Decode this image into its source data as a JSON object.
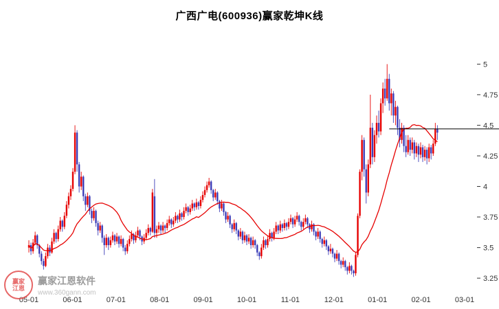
{
  "title": "广西广电(600936)赢家乾坤K线",
  "watermark": {
    "brand": "赢家江恩软件",
    "url": "www.360gann.com",
    "logo_line1": "赢家",
    "logo_line2": "江恩"
  },
  "chart_data": {
    "type": "candlestick",
    "title": "广西广电(600936)赢家乾坤K线",
    "x_labels": [
      "05-01",
      "06-01",
      "07-01",
      "08-01",
      "09-01",
      "10-01",
      "11-01",
      "12-01",
      "01-01",
      "02-01",
      "03-01"
    ],
    "y_tick_values": [
      5,
      4.75,
      4.5,
      4.25,
      4,
      3.75,
      3.5,
      3.25
    ],
    "y_tick_labels": [
      "5",
      "4.75",
      "4.5",
      "4.25",
      "4",
      "3.75",
      "3.5",
      "3.25"
    ],
    "ylim": [
      3.2,
      5.12
    ],
    "grid": false,
    "legend": "none",
    "ma_period": 22,
    "reference_line": {
      "price": 4.47,
      "start_day": 172,
      "color": "#000000"
    },
    "colors": {
      "up": "#e60000",
      "down": "#3d3db8",
      "ma": "#e60000",
      "axis_text": "#333333"
    },
    "candles": [
      [
        3.5,
        3.56,
        3.46,
        3.52
      ],
      [
        3.52,
        3.54,
        3.44,
        3.47
      ],
      [
        3.47,
        3.57,
        3.45,
        3.54
      ],
      [
        3.54,
        3.63,
        3.52,
        3.6
      ],
      [
        3.6,
        3.61,
        3.49,
        3.52
      ],
      [
        3.52,
        3.53,
        3.42,
        3.45
      ],
      [
        3.45,
        3.47,
        3.36,
        3.39
      ],
      [
        3.39,
        3.41,
        3.32,
        3.35
      ],
      [
        3.35,
        3.46,
        3.34,
        3.43
      ],
      [
        3.43,
        3.53,
        3.41,
        3.5
      ],
      [
        3.5,
        3.52,
        3.43,
        3.46
      ],
      [
        3.46,
        3.58,
        3.45,
        3.55
      ],
      [
        3.55,
        3.65,
        3.53,
        3.62
      ],
      [
        3.62,
        3.63,
        3.54,
        3.57
      ],
      [
        3.57,
        3.68,
        3.55,
        3.65
      ],
      [
        3.65,
        3.75,
        3.63,
        3.72
      ],
      [
        3.72,
        3.73,
        3.63,
        3.67
      ],
      [
        3.67,
        3.79,
        3.65,
        3.76
      ],
      [
        3.76,
        3.88,
        3.74,
        3.85
      ],
      [
        3.85,
        3.95,
        3.82,
        3.92
      ],
      [
        3.92,
        4.01,
        3.89,
        3.98
      ],
      [
        3.98,
        4.15,
        3.96,
        4.12
      ],
      [
        4.12,
        4.5,
        4.1,
        4.44
      ],
      [
        4.44,
        4.46,
        4.12,
        4.18
      ],
      [
        4.18,
        4.2,
        3.95,
        4.0
      ],
      [
        4.0,
        4.12,
        3.97,
        4.08
      ],
      [
        4.08,
        4.09,
        3.88,
        3.92
      ],
      [
        3.92,
        3.94,
        3.8,
        3.85
      ],
      [
        3.85,
        3.95,
        3.83,
        3.92
      ],
      [
        3.92,
        3.93,
        3.77,
        3.8
      ],
      [
        3.8,
        3.82,
        3.7,
        3.74
      ],
      [
        3.74,
        3.83,
        3.72,
        3.8
      ],
      [
        3.8,
        3.81,
        3.67,
        3.7
      ],
      [
        3.7,
        3.72,
        3.6,
        3.64
      ],
      [
        3.64,
        3.71,
        3.62,
        3.68
      ],
      [
        3.68,
        3.69,
        3.54,
        3.58
      ],
      [
        3.58,
        3.6,
        3.44,
        3.52
      ],
      [
        3.52,
        3.61,
        3.5,
        3.58
      ],
      [
        3.58,
        3.59,
        3.48,
        3.52
      ],
      [
        3.52,
        3.59,
        3.5,
        3.56
      ],
      [
        3.56,
        3.63,
        3.54,
        3.6
      ],
      [
        3.6,
        3.61,
        3.52,
        3.55
      ],
      [
        3.55,
        3.62,
        3.53,
        3.59
      ],
      [
        3.59,
        3.6,
        3.5,
        3.53
      ],
      [
        3.53,
        3.6,
        3.51,
        3.57
      ],
      [
        3.57,
        3.58,
        3.47,
        3.5
      ],
      [
        3.5,
        3.52,
        3.44,
        3.47
      ],
      [
        3.47,
        3.56,
        3.45,
        3.53
      ],
      [
        3.53,
        3.6,
        3.51,
        3.57
      ],
      [
        3.57,
        3.64,
        3.55,
        3.61
      ],
      [
        3.61,
        3.62,
        3.53,
        3.56
      ],
      [
        3.56,
        3.63,
        3.54,
        3.6
      ],
      [
        3.6,
        3.67,
        3.58,
        3.64
      ],
      [
        3.64,
        3.65,
        3.56,
        3.59
      ],
      [
        3.59,
        3.6,
        3.52,
        3.55
      ],
      [
        3.55,
        3.61,
        3.53,
        3.58
      ],
      [
        3.58,
        3.65,
        3.56,
        3.62
      ],
      [
        3.62,
        3.69,
        3.6,
        3.66
      ],
      [
        3.66,
        3.67,
        3.6,
        3.63
      ],
      [
        3.63,
        3.98,
        3.62,
        3.95
      ],
      [
        3.92,
        4.06,
        3.58,
        3.62
      ],
      [
        3.62,
        3.68,
        3.58,
        3.65
      ],
      [
        3.65,
        3.71,
        3.62,
        3.68
      ],
      [
        3.68,
        3.69,
        3.61,
        3.64
      ],
      [
        3.64,
        3.71,
        3.62,
        3.68
      ],
      [
        3.68,
        3.69,
        3.62,
        3.66
      ],
      [
        3.66,
        3.73,
        3.64,
        3.7
      ],
      [
        3.7,
        3.76,
        3.68,
        3.73
      ],
      [
        3.73,
        3.74,
        3.66,
        3.69
      ],
      [
        3.69,
        3.75,
        3.67,
        3.72
      ],
      [
        3.72,
        3.79,
        3.7,
        3.76
      ],
      [
        3.76,
        3.77,
        3.7,
        3.73
      ],
      [
        3.73,
        3.81,
        3.71,
        3.78
      ],
      [
        3.78,
        3.79,
        3.72,
        3.75
      ],
      [
        3.75,
        3.83,
        3.73,
        3.8
      ],
      [
        3.8,
        3.86,
        3.78,
        3.83
      ],
      [
        3.83,
        3.84,
        3.76,
        3.79
      ],
      [
        3.79,
        3.85,
        3.77,
        3.82
      ],
      [
        3.82,
        3.89,
        3.8,
        3.86
      ],
      [
        3.86,
        3.87,
        3.8,
        3.83
      ],
      [
        3.83,
        3.9,
        3.81,
        3.87
      ],
      [
        3.87,
        3.88,
        3.81,
        3.84
      ],
      [
        3.84,
        3.92,
        3.82,
        3.89
      ],
      [
        3.89,
        3.96,
        3.87,
        3.93
      ],
      [
        3.93,
        4.0,
        3.91,
        3.97
      ],
      [
        3.97,
        4.04,
        3.95,
        4.01
      ],
      [
        4.01,
        4.07,
        3.99,
        4.04
      ],
      [
        4.04,
        4.05,
        3.94,
        3.97
      ],
      [
        3.97,
        3.98,
        3.88,
        3.91
      ],
      [
        3.91,
        3.98,
        3.89,
        3.95
      ],
      [
        3.95,
        3.96,
        3.85,
        3.88
      ],
      [
        3.88,
        3.89,
        3.79,
        3.82
      ],
      [
        3.82,
        3.89,
        3.8,
        3.86
      ],
      [
        3.86,
        3.87,
        3.76,
        3.79
      ],
      [
        3.79,
        3.8,
        3.7,
        3.73
      ],
      [
        3.73,
        3.79,
        3.71,
        3.76
      ],
      [
        3.76,
        3.77,
        3.66,
        3.69
      ],
      [
        3.69,
        3.7,
        3.62,
        3.65
      ],
      [
        3.65,
        3.73,
        3.63,
        3.7
      ],
      [
        3.7,
        3.71,
        3.61,
        3.64
      ],
      [
        3.64,
        3.65,
        3.56,
        3.59
      ],
      [
        3.59,
        3.66,
        3.57,
        3.63
      ],
      [
        3.63,
        3.64,
        3.53,
        3.56
      ],
      [
        3.56,
        3.63,
        3.54,
        3.6
      ],
      [
        3.6,
        3.61,
        3.52,
        3.55
      ],
      [
        3.55,
        3.61,
        3.53,
        3.58
      ],
      [
        3.58,
        3.59,
        3.49,
        3.52
      ],
      [
        3.52,
        3.59,
        3.5,
        3.56
      ],
      [
        3.56,
        3.57,
        3.49,
        3.52
      ],
      [
        3.52,
        3.53,
        3.43,
        3.46
      ],
      [
        3.46,
        3.47,
        3.4,
        3.43
      ],
      [
        3.43,
        3.53,
        3.41,
        3.5
      ],
      [
        3.5,
        3.59,
        3.48,
        3.56
      ],
      [
        3.56,
        3.57,
        3.49,
        3.52
      ],
      [
        3.52,
        3.6,
        3.5,
        3.57
      ],
      [
        3.57,
        3.65,
        3.55,
        3.62
      ],
      [
        3.62,
        3.63,
        3.55,
        3.58
      ],
      [
        3.58,
        3.66,
        3.56,
        3.63
      ],
      [
        3.63,
        3.71,
        3.61,
        3.68
      ],
      [
        3.68,
        3.69,
        3.61,
        3.64
      ],
      [
        3.64,
        3.72,
        3.62,
        3.69
      ],
      [
        3.69,
        3.7,
        3.63,
        3.66
      ],
      [
        3.66,
        3.73,
        3.64,
        3.7
      ],
      [
        3.7,
        3.71,
        3.64,
        3.67
      ],
      [
        3.67,
        3.74,
        3.65,
        3.71
      ],
      [
        3.71,
        3.77,
        3.69,
        3.74
      ],
      [
        3.74,
        3.75,
        3.66,
        3.69
      ],
      [
        3.69,
        3.76,
        3.67,
        3.73
      ],
      [
        3.73,
        3.79,
        3.71,
        3.76
      ],
      [
        3.76,
        3.77,
        3.68,
        3.71
      ],
      [
        3.71,
        3.72,
        3.64,
        3.67
      ],
      [
        3.67,
        3.74,
        3.65,
        3.71
      ],
      [
        3.71,
        3.77,
        3.69,
        3.74
      ],
      [
        3.74,
        3.75,
        3.66,
        3.69
      ],
      [
        3.69,
        3.7,
        3.62,
        3.65
      ],
      [
        3.65,
        3.72,
        3.63,
        3.69
      ],
      [
        3.69,
        3.7,
        3.6,
        3.63
      ],
      [
        3.63,
        3.64,
        3.56,
        3.59
      ],
      [
        3.59,
        3.66,
        3.57,
        3.63
      ],
      [
        3.63,
        3.64,
        3.54,
        3.57
      ],
      [
        3.57,
        3.58,
        3.5,
        3.53
      ],
      [
        3.53,
        3.59,
        3.51,
        3.56
      ],
      [
        3.56,
        3.57,
        3.48,
        3.51
      ],
      [
        3.51,
        3.52,
        3.44,
        3.47
      ],
      [
        3.47,
        3.53,
        3.45,
        3.49
      ],
      [
        3.49,
        3.5,
        3.42,
        3.45
      ],
      [
        3.45,
        3.46,
        3.38,
        3.41
      ],
      [
        3.41,
        3.48,
        3.39,
        3.45
      ],
      [
        3.45,
        3.46,
        3.36,
        3.39
      ],
      [
        3.39,
        3.4,
        3.33,
        3.36
      ],
      [
        3.36,
        3.42,
        3.34,
        3.39
      ],
      [
        3.39,
        3.4,
        3.31,
        3.34
      ],
      [
        3.34,
        3.35,
        3.28,
        3.31
      ],
      [
        3.31,
        3.38,
        3.29,
        3.35
      ],
      [
        3.35,
        3.36,
        3.28,
        3.31
      ],
      [
        3.31,
        3.32,
        3.26,
        3.29
      ],
      [
        3.29,
        3.46,
        3.27,
        3.44
      ],
      [
        3.44,
        3.78,
        3.42,
        3.76
      ],
      [
        3.76,
        4.14,
        3.74,
        4.12
      ],
      [
        4.12,
        4.42,
        4.05,
        4.38
      ],
      [
        4.38,
        4.4,
        4.08,
        4.14
      ],
      [
        4.14,
        4.18,
        3.86,
        3.95
      ],
      [
        3.95,
        4.22,
        3.92,
        4.18
      ],
      [
        4.18,
        4.75,
        4.15,
        4.48
      ],
      [
        4.48,
        4.52,
        4.18,
        4.24
      ],
      [
        4.24,
        4.46,
        4.2,
        4.42
      ],
      [
        4.42,
        4.58,
        4.35,
        4.52
      ],
      [
        4.52,
        4.62,
        4.4,
        4.45
      ],
      [
        4.45,
        4.72,
        4.42,
        4.68
      ],
      [
        4.68,
        4.85,
        4.6,
        4.8
      ],
      [
        4.8,
        4.88,
        4.66,
        4.72
      ],
      [
        4.72,
        5.0,
        4.7,
        4.88
      ],
      [
        4.88,
        4.92,
        4.62,
        4.68
      ],
      [
        4.68,
        4.8,
        4.58,
        4.76
      ],
      [
        4.76,
        4.78,
        4.52,
        4.58
      ],
      [
        4.58,
        4.7,
        4.5,
        4.65
      ],
      [
        4.65,
        4.66,
        4.42,
        4.48
      ],
      [
        4.48,
        4.55,
        4.32,
        4.38
      ],
      [
        4.38,
        4.52,
        4.35,
        4.48
      ],
      [
        4.48,
        4.5,
        4.28,
        4.33
      ],
      [
        4.33,
        4.42,
        4.24,
        4.28
      ],
      [
        4.28,
        4.42,
        4.26,
        4.38
      ],
      [
        4.38,
        4.4,
        4.25,
        4.3
      ],
      [
        4.3,
        4.4,
        4.27,
        4.36
      ],
      [
        4.36,
        4.38,
        4.22,
        4.27
      ],
      [
        4.27,
        4.36,
        4.24,
        4.33
      ],
      [
        4.33,
        4.35,
        4.2,
        4.26
      ],
      [
        4.26,
        4.36,
        4.23,
        4.32
      ],
      [
        4.32,
        4.34,
        4.2,
        4.24
      ],
      [
        4.24,
        4.33,
        4.21,
        4.3
      ],
      [
        4.3,
        4.32,
        4.18,
        4.23
      ],
      [
        4.23,
        4.35,
        4.2,
        4.32
      ],
      [
        4.32,
        4.34,
        4.22,
        4.27
      ],
      [
        4.27,
        4.38,
        4.25,
        4.35
      ],
      [
        4.35,
        4.52,
        4.33,
        4.47
      ],
      [
        4.47,
        4.5,
        4.38,
        4.44
      ]
    ]
  }
}
